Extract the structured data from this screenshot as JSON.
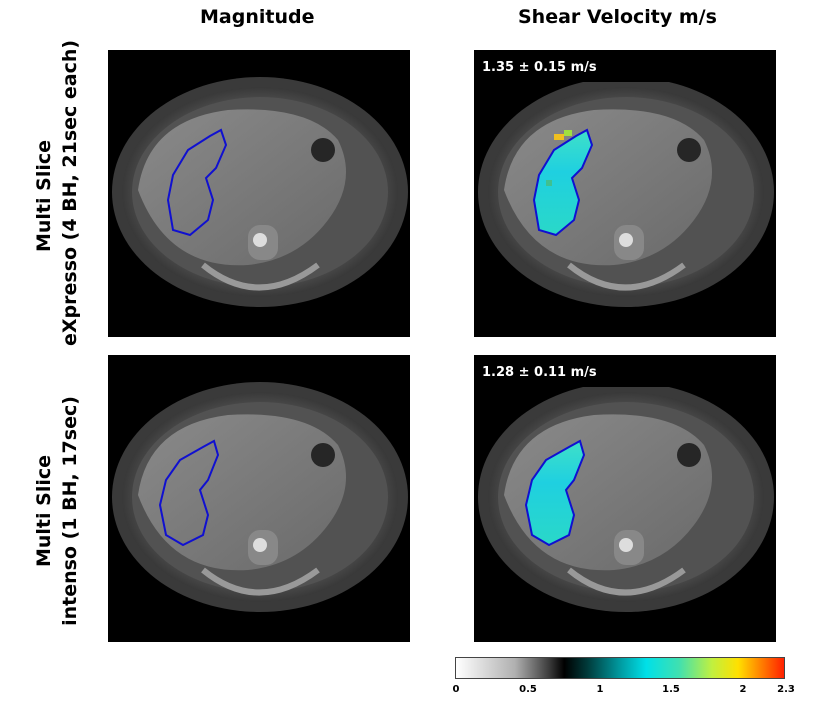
{
  "columns": {
    "magnitude": "Magnitude",
    "shear": "Shear Velocity m/s"
  },
  "rows": [
    {
      "title": "Multi Slice",
      "subtitle": "eXpresso (4 BH, 21sec each)",
      "stat": "1.35 ± 0.15 m/s"
    },
    {
      "title": "Multi Slice",
      "subtitle": "intenso (1 BH, 17sec)",
      "stat": "1.28 ± 0.11 m/s"
    }
  ],
  "colorbar": {
    "ticks": [
      "0",
      "0.5",
      "1",
      "1.5",
      "2",
      "2.3"
    ]
  },
  "colors": {
    "roi_outline": "#1010d0",
    "elastogram_main": "#22d4dc"
  }
}
